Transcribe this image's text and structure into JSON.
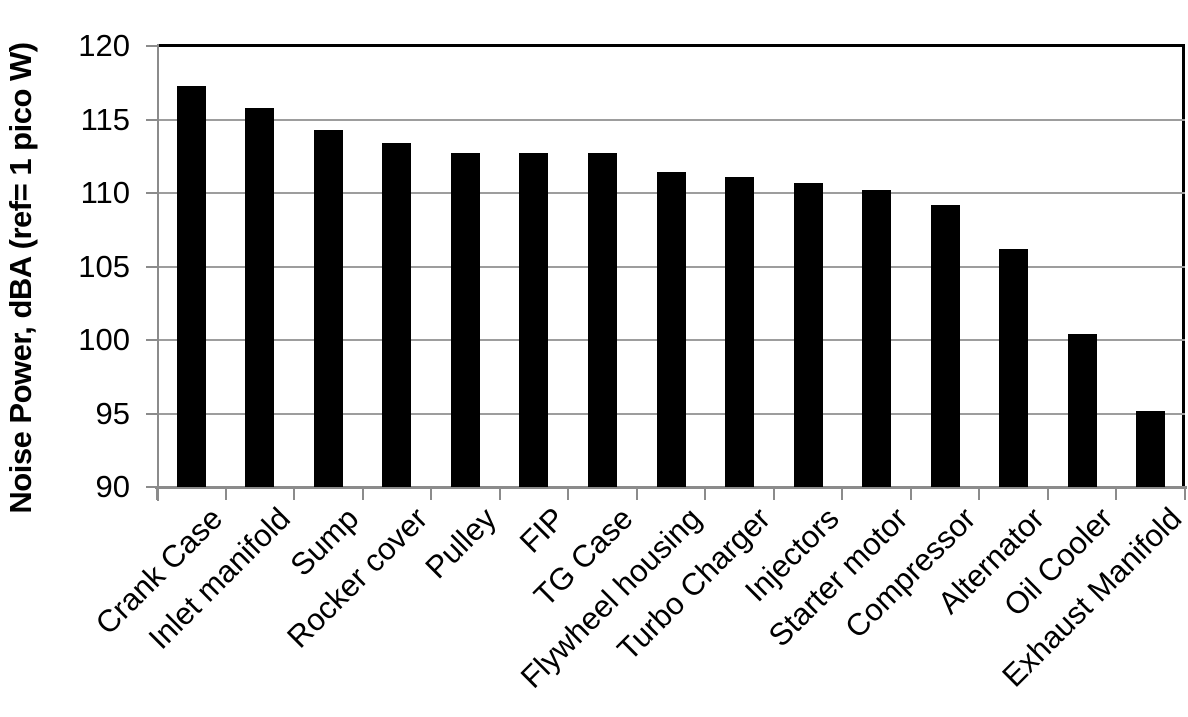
{
  "chart_data": {
    "type": "bar",
    "title": "",
    "ylabel": "Noise Power, dBA (ref= 1 pico W)",
    "xlabel": "",
    "categories": [
      "Crank Case",
      "Inlet manifold",
      "Sump",
      "Rocker cover",
      "Pulley",
      "FIP",
      "TG Case",
      "Flywheel housing",
      "Turbo Charger",
      "Injectors",
      "Starter motor",
      "Compressor",
      "Alternator",
      "Oil Cooler",
      "Exhaust Manifold"
    ],
    "values": [
      117.3,
      115.8,
      114.3,
      113.4,
      112.7,
      112.7,
      112.7,
      111.4,
      111.1,
      110.7,
      110.2,
      109.2,
      106.2,
      100.4,
      95.2
    ],
    "ylim": [
      90,
      120
    ],
    "yticks": [
      90,
      95,
      100,
      105,
      110,
      115,
      120
    ],
    "grid": "horizontal",
    "legend": "none",
    "bar_color": "#000000",
    "gridline_color": "#9d9d9d",
    "axis_color": "#8b8b8b",
    "frame_color": "#000000",
    "background_color": "#ffffff"
  }
}
